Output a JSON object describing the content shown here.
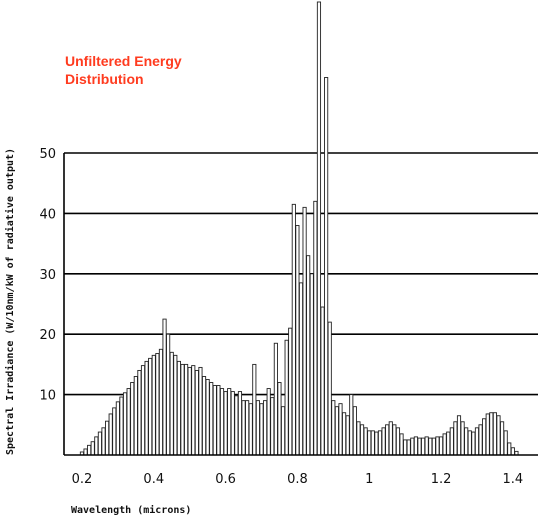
{
  "chart_data": {
    "type": "bar",
    "title_lines": [
      "Unfiltered Energy",
      "Distribution"
    ],
    "xlabel": "Wavelength (microns)",
    "ylabel": "Spectral Irradiance (W/10nm/kW of radiative output)",
    "xlim": [
      0.15,
      1.47
    ],
    "ylim": [
      0,
      50
    ],
    "grid": true,
    "xticks": [
      0.2,
      0.4,
      0.6,
      0.8,
      1,
      1.2,
      1.4
    ],
    "xtick_labels": [
      "0.2",
      "0.4",
      "0.6",
      "0.8",
      "1",
      "1.2",
      "1.4"
    ],
    "yticks": [
      10,
      20,
      30,
      40,
      50
    ],
    "ytick_labels": [
      "10",
      "20",
      "30",
      "40",
      "50"
    ],
    "bar_width": 0.009,
    "bars": [
      [
        0.2,
        0.5
      ],
      [
        0.21,
        1.0
      ],
      [
        0.22,
        1.6
      ],
      [
        0.23,
        2.2
      ],
      [
        0.24,
        3.0
      ],
      [
        0.25,
        3.8
      ],
      [
        0.26,
        4.5
      ],
      [
        0.27,
        5.6
      ],
      [
        0.28,
        6.8
      ],
      [
        0.29,
        7.8
      ],
      [
        0.3,
        8.8
      ],
      [
        0.31,
        9.6
      ],
      [
        0.32,
        10.3
      ],
      [
        0.33,
        11.0
      ],
      [
        0.34,
        12.0
      ],
      [
        0.35,
        13.0
      ],
      [
        0.36,
        14.0
      ],
      [
        0.37,
        14.8
      ],
      [
        0.38,
        15.5
      ],
      [
        0.39,
        16.0
      ],
      [
        0.4,
        16.5
      ],
      [
        0.41,
        16.8
      ],
      [
        0.42,
        17.5
      ],
      [
        0.43,
        22.5
      ],
      [
        0.44,
        20.0
      ],
      [
        0.45,
        17.0
      ],
      [
        0.46,
        16.5
      ],
      [
        0.47,
        15.5
      ],
      [
        0.48,
        15.0
      ],
      [
        0.49,
        15.0
      ],
      [
        0.5,
        14.5
      ],
      [
        0.51,
        14.8
      ],
      [
        0.52,
        14.0
      ],
      [
        0.53,
        14.5
      ],
      [
        0.54,
        13.0
      ],
      [
        0.55,
        12.5
      ],
      [
        0.56,
        12.0
      ],
      [
        0.57,
        11.5
      ],
      [
        0.58,
        11.5
      ],
      [
        0.59,
        11.0
      ],
      [
        0.6,
        10.5
      ],
      [
        0.61,
        11.0
      ],
      [
        0.62,
        10.5
      ],
      [
        0.63,
        9.8
      ],
      [
        0.64,
        10.5
      ],
      [
        0.65,
        9.0
      ],
      [
        0.66,
        9.0
      ],
      [
        0.67,
        8.5
      ],
      [
        0.68,
        15.0
      ],
      [
        0.69,
        9.0
      ],
      [
        0.7,
        8.5
      ],
      [
        0.71,
        9.0
      ],
      [
        0.72,
        11.0
      ],
      [
        0.73,
        9.5
      ],
      [
        0.74,
        18.5
      ],
      [
        0.75,
        12.0
      ],
      [
        0.76,
        8.0
      ],
      [
        0.77,
        19.0
      ],
      [
        0.78,
        21.0
      ],
      [
        0.79,
        41.5
      ],
      [
        0.8,
        38.0
      ],
      [
        0.81,
        28.5
      ],
      [
        0.82,
        41.0
      ],
      [
        0.83,
        33.0
      ],
      [
        0.84,
        30.0
      ],
      [
        0.85,
        42.0
      ],
      [
        0.86,
        75.0
      ],
      [
        0.87,
        24.5
      ],
      [
        0.88,
        62.5
      ],
      [
        0.89,
        22.0
      ],
      [
        0.9,
        9.0
      ],
      [
        0.91,
        8.0
      ],
      [
        0.92,
        8.5
      ],
      [
        0.93,
        7.0
      ],
      [
        0.94,
        6.5
      ],
      [
        0.95,
        10.0
      ],
      [
        0.96,
        8.0
      ],
      [
        0.97,
        5.5
      ],
      [
        0.98,
        5.0
      ],
      [
        0.99,
        4.5
      ],
      [
        1.0,
        4.0
      ],
      [
        1.01,
        4.0
      ],
      [
        1.02,
        3.8
      ],
      [
        1.03,
        4.0
      ],
      [
        1.04,
        4.5
      ],
      [
        1.05,
        5.0
      ],
      [
        1.06,
        5.5
      ],
      [
        1.07,
        5.0
      ],
      [
        1.08,
        4.5
      ],
      [
        1.09,
        3.5
      ],
      [
        1.1,
        2.5
      ],
      [
        1.11,
        2.5
      ],
      [
        1.12,
        2.8
      ],
      [
        1.13,
        3.0
      ],
      [
        1.14,
        2.8
      ],
      [
        1.15,
        2.8
      ],
      [
        1.16,
        3.0
      ],
      [
        1.17,
        2.8
      ],
      [
        1.18,
        2.8
      ],
      [
        1.19,
        3.0
      ],
      [
        1.2,
        3.0
      ],
      [
        1.21,
        3.5
      ],
      [
        1.22,
        3.8
      ],
      [
        1.23,
        4.5
      ],
      [
        1.24,
        5.5
      ],
      [
        1.25,
        6.5
      ],
      [
        1.26,
        5.5
      ],
      [
        1.27,
        4.5
      ],
      [
        1.28,
        4.0
      ],
      [
        1.29,
        3.8
      ],
      [
        1.3,
        4.5
      ],
      [
        1.31,
        5.0
      ],
      [
        1.32,
        6.0
      ],
      [
        1.33,
        6.8
      ],
      [
        1.34,
        7.0
      ],
      [
        1.35,
        7.0
      ],
      [
        1.36,
        6.5
      ],
      [
        1.37,
        5.5
      ],
      [
        1.38,
        4.0
      ],
      [
        1.39,
        2.0
      ],
      [
        1.4,
        1.2
      ],
      [
        1.41,
        0.6
      ]
    ]
  }
}
